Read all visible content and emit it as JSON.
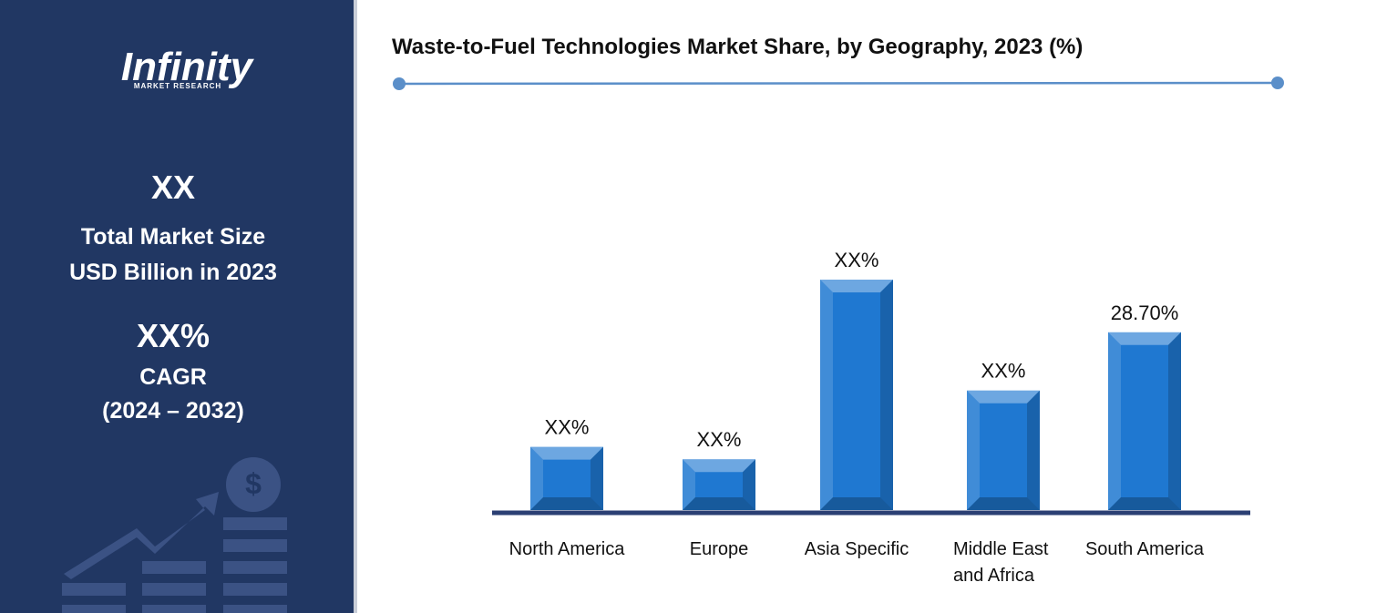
{
  "panel": {
    "logo": "Infinity",
    "logo_sub": "MARKET RESEARCH",
    "market_size": "XX",
    "market_size_label_1": "Total Market Size",
    "market_size_label_2": "USD Billion in 2023",
    "cagr": "XX%",
    "cagr_label": "CAGR",
    "cagr_period": "(2024 – 2032)"
  },
  "chart_data": {
    "type": "bar",
    "title": "Waste-to-Fuel Technologies Market Share, by Geography, 2023 (%)",
    "categories": [
      "North America",
      "Europe",
      "Asia Specific",
      "Middle East and Africa",
      "South America"
    ],
    "values": [
      10.2,
      8.2,
      37.2,
      19.3,
      28.7
    ],
    "value_labels": [
      "XX%",
      "XX%",
      "XX%",
      "XX%",
      "28.70%"
    ],
    "color": "#1f78d1"
  }
}
